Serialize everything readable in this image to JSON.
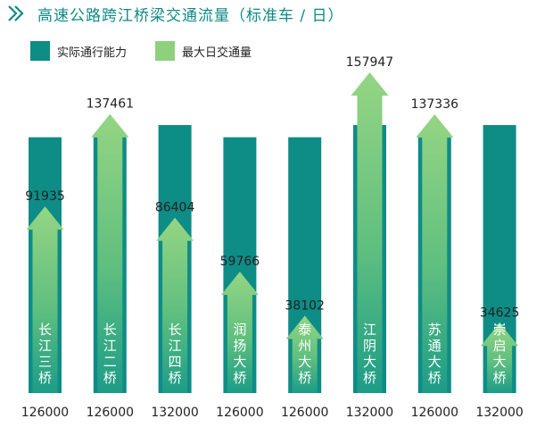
{
  "title": "高速公路跨江桥梁交通流量（标准车 / 日）",
  "colors": {
    "capacity": "#0e8c86",
    "flow_top": "#8fd07f",
    "flow_bottom": "#1c9c87",
    "title": "#0d8a86"
  },
  "legend": [
    {
      "label": "实际通行能力",
      "color": "#0e8c86"
    },
    {
      "label": "最大日交通量",
      "color": "#8fd07f"
    }
  ],
  "chart_data": {
    "type": "bar",
    "categories": [
      "长江三桥",
      "长江二桥",
      "长江四桥",
      "润扬大桥",
      "泰州大桥",
      "江阴大桥",
      "苏通大桥",
      "崇启大桥"
    ],
    "series": [
      {
        "name": "实际通行能力",
        "values": [
          126000,
          126000,
          132000,
          126000,
          126000,
          132000,
          126000,
          132000
        ]
      },
      {
        "name": "最大日交通量",
        "values": [
          91935,
          137461,
          86404,
          59766,
          38102,
          157947,
          137336,
          34625
        ]
      }
    ],
    "legend_position": "top-left",
    "grid": false
  }
}
